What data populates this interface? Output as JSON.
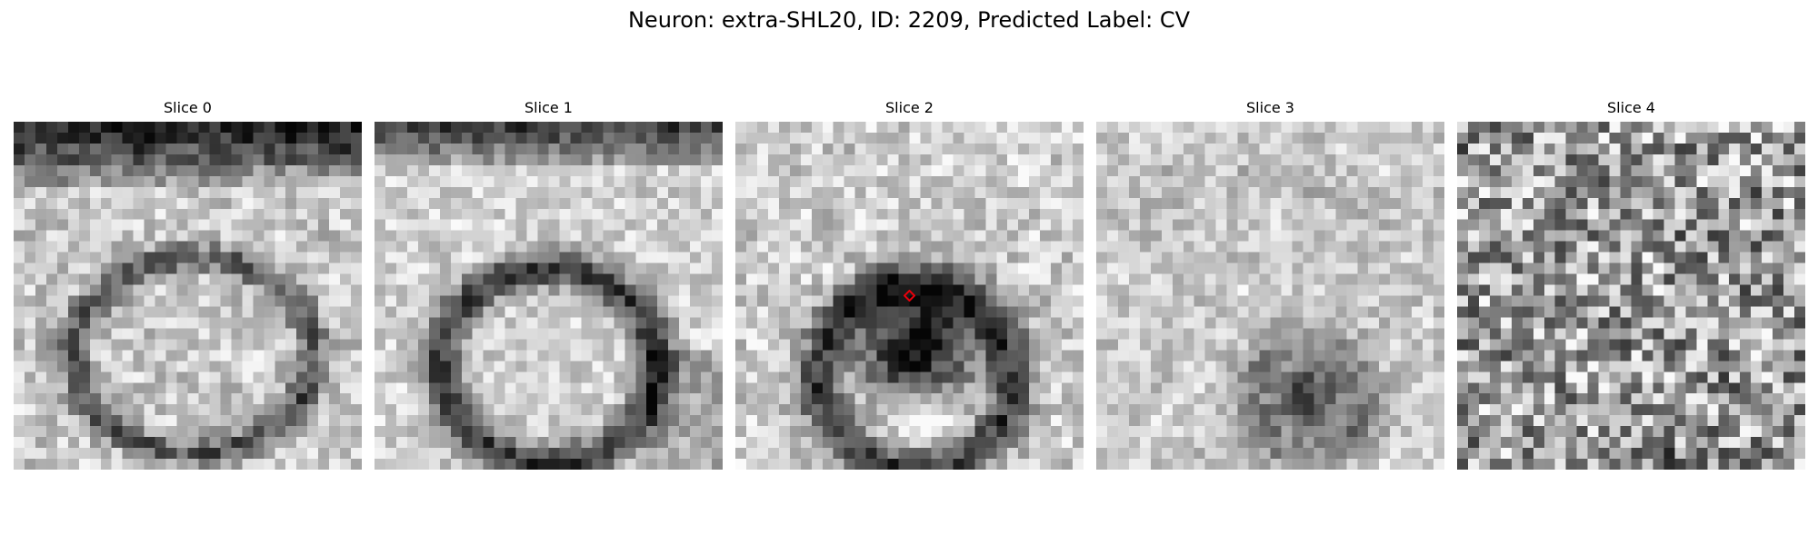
{
  "figure": {
    "title": "Neuron: extra-SHL20, ID: 2209, Predicted Label: CV"
  },
  "slices": [
    {
      "title": "Slice 0"
    },
    {
      "title": "Slice 1"
    },
    {
      "title": "Slice 2"
    },
    {
      "title": "Slice 3"
    },
    {
      "title": "Slice 4"
    }
  ],
  "colors": {
    "marker": "#e8000b",
    "colormap": "grayscale"
  }
}
